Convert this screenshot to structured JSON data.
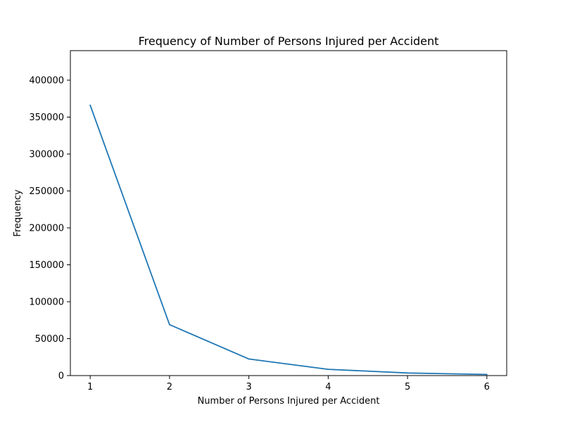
{
  "chart_data": {
    "type": "line",
    "title": "Frequency of Number of Persons Injured per Accident",
    "xlabel": "Number of Persons Injured per Accident",
    "ylabel": "Frequency",
    "x": [
      1,
      2,
      3,
      4,
      5,
      6
    ],
    "series": [
      {
        "values": [
          366000,
          69000,
          22500,
          8500,
          3500,
          1500
        ],
        "color": "#1f77b4"
      }
    ],
    "xticks": [
      1,
      2,
      3,
      4,
      5,
      6
    ],
    "yticks": [
      0,
      50000,
      100000,
      150000,
      200000,
      250000,
      300000,
      350000,
      400000
    ],
    "xlim": [
      0.75,
      6.25
    ],
    "ylim": [
      0,
      440000
    ],
    "grid": false,
    "legend": "none"
  }
}
